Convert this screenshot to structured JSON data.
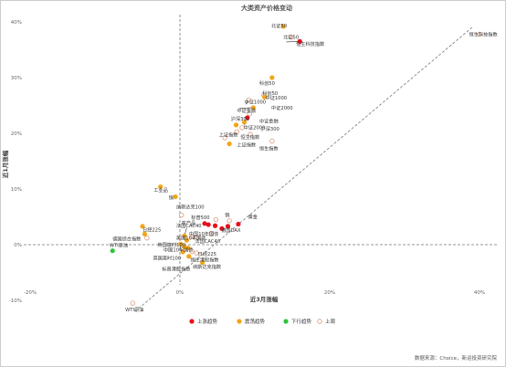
{
  "chart_data": {
    "type": "scatter",
    "title": "大类资产价格变动",
    "xlabel": "近3月涨幅",
    "ylabel": "近1月涨幅",
    "xlim": [
      -20,
      42
    ],
    "ylim": [
      -12,
      42
    ],
    "xticks": [
      -20,
      0,
      20,
      40
    ],
    "xtick_labels": [
      "-20%",
      "0%",
      "20%",
      "40%"
    ],
    "yticks": [
      -10,
      0,
      10,
      20,
      30,
      40
    ],
    "ytick_labels": [
      "-10%",
      "0%",
      "10%",
      "20%",
      "30%",
      "40%"
    ],
    "grid": false,
    "legend_position": "bottom",
    "categories": [
      {
        "key": "up",
        "label": "上涨趋势",
        "color": "#e8111b",
        "hollow": false
      },
      {
        "key": "swing",
        "label": "震荡趋势",
        "color": "#f3a517",
        "hollow": false
      },
      {
        "key": "down",
        "label": "下行趋势",
        "color": "#2ec43a",
        "hollow": false
      },
      {
        "key": "other",
        "label": "上周",
        "color": "#d99a7a",
        "hollow": true
      }
    ],
    "points": [
      {
        "x": 13.8,
        "y": 39.2,
        "cat": "swing",
        "label": "北证50"
      },
      {
        "x": 14.8,
        "y": 37.3,
        "cat": "other",
        "label": "北证50"
      },
      {
        "x": 16.0,
        "y": 36.5,
        "cat": "up",
        "label": "恒生科技指数"
      },
      {
        "x": 40.0,
        "y": 37.8,
        "cat": "other",
        "label": "恒生科技指数"
      },
      {
        "x": 12.3,
        "y": 30.0,
        "cat": "swing",
        "label": "科创50"
      },
      {
        "x": 11.2,
        "y": 26.8,
        "cat": "other",
        "label": "中证1000"
      },
      {
        "x": 11.3,
        "y": 26.5,
        "cat": "swing",
        "label": "中证2000"
      },
      {
        "x": 9.2,
        "y": 26.0,
        "cat": "other",
        "label": "中证1000"
      },
      {
        "x": 9.8,
        "y": 24.6,
        "cat": "swing",
        "label": "中证金融"
      },
      {
        "x": 9.3,
        "y": 23.5,
        "cat": "other",
        "label": "中证2000"
      },
      {
        "x": 9.0,
        "y": 22.8,
        "cat": "up",
        "label": "沪深300"
      },
      {
        "x": 8.6,
        "y": 22.0,
        "cat": "swing",
        "label": "中证金融"
      },
      {
        "x": 8.3,
        "y": 21.0,
        "cat": "other",
        "label": "沪深300"
      },
      {
        "x": 7.5,
        "y": 21.5,
        "cat": "swing",
        "label": "中证2000"
      },
      {
        "x": 7.6,
        "y": 20.3,
        "cat": "other",
        "label": "恒生指数"
      },
      {
        "x": 9.4,
        "y": 19.8,
        "cat": "other",
        "label": "恒生指数"
      },
      {
        "x": 6.6,
        "y": 18.1,
        "cat": "swing",
        "label": "上证指数"
      },
      {
        "x": 6.0,
        "y": 19.2,
        "cat": "other",
        "label": "上证指数"
      },
      {
        "x": 12.3,
        "y": 18.6,
        "cat": "other",
        "label": "恒生指数"
      },
      {
        "x": -2.6,
        "y": 10.4,
        "cat": "swing",
        "label": "工业品"
      },
      {
        "x": -0.6,
        "y": 8.6,
        "cat": "swing",
        "label": "铜"
      },
      {
        "x": -5.0,
        "y": 3.3,
        "cat": "swing",
        "label": "日经225"
      },
      {
        "x": -4.7,
        "y": 1.9,
        "cat": "swing",
        "label": "德国综合指数"
      },
      {
        "x": -4.4,
        "y": 1.2,
        "cat": "other",
        "label": "德国综合指数"
      },
      {
        "x": -9.0,
        "y": -1.1,
        "cat": "down",
        "label": "WTI原油"
      },
      {
        "x": -6.3,
        "y": -10.5,
        "cat": "other",
        "label": "WTI原油"
      },
      {
        "x": 0.2,
        "y": 5.3,
        "cat": "other",
        "label": "纳斯达克100"
      },
      {
        "x": 3.3,
        "y": 3.8,
        "cat": "up",
        "label": "标普500"
      },
      {
        "x": 3.8,
        "y": 3.6,
        "cat": "up",
        "label": "农产品"
      },
      {
        "x": 4.7,
        "y": 3.4,
        "cat": "up",
        "label": "铝"
      },
      {
        "x": 5.6,
        "y": 2.9,
        "cat": "up",
        "label": "德国DAX"
      },
      {
        "x": 6.4,
        "y": 3.3,
        "cat": "up",
        "label": "铝"
      },
      {
        "x": 4.8,
        "y": 4.5,
        "cat": "other",
        "label": "铝"
      },
      {
        "x": 6.6,
        "y": 4.3,
        "cat": "other",
        "label": "德国DAX"
      },
      {
        "x": 4.2,
        "y": 2.0,
        "cat": "other",
        "label": "标普500"
      },
      {
        "x": 7.8,
        "y": 3.7,
        "cat": "up",
        "label": "黄金"
      },
      {
        "x": 0.6,
        "y": 1.6,
        "cat": "swing",
        "label": "法国CAC40"
      },
      {
        "x": 1.6,
        "y": 1.4,
        "cat": "other",
        "label": "美国10年国债"
      },
      {
        "x": 2.3,
        "y": 1.3,
        "cat": "other",
        "label": "法国CAC40"
      },
      {
        "x": 0.9,
        "y": 0.8,
        "cat": "swing",
        "label": "美国10年国债"
      },
      {
        "x": 0.1,
        "y": 0.1,
        "cat": "swing",
        "label": "中国10年国债"
      },
      {
        "x": 0.6,
        "y": -0.4,
        "cat": "swing",
        "label": "英国富时100"
      },
      {
        "x": 1.1,
        "y": -0.6,
        "cat": "swing",
        "label": "恒生指数"
      },
      {
        "x": 0.4,
        "y": -1.3,
        "cat": "swing",
        "label": "美国富时100"
      },
      {
        "x": 1.6,
        "y": -1.2,
        "cat": "other",
        "label": "日经225"
      },
      {
        "x": 2.2,
        "y": -1.5,
        "cat": "other",
        "label": "纳斯达克指数"
      },
      {
        "x": 1.2,
        "y": -2.1,
        "cat": "swing",
        "label": "纳斯达克指数"
      },
      {
        "x": 3.0,
        "y": -3.2,
        "cat": "swing",
        "label": "恒生港股指数"
      }
    ],
    "annotations": [
      {
        "text": "北证50",
        "x": 12.2,
        "y": 39.0
      },
      {
        "text": "北证50",
        "x": 13.8,
        "y": 37.0
      },
      {
        "text": "恒生科技指数",
        "x": 15.5,
        "y": 35.7
      },
      {
        "text": "恒生科技指数",
        "x": 38.6,
        "y": 37.5
      },
      {
        "text": "科创50",
        "x": 10.6,
        "y": 28.7
      },
      {
        "text": "科创50",
        "x": 11.0,
        "y": 26.9
      },
      {
        "text": "中证1000",
        "x": 11.4,
        "y": 26.1
      },
      {
        "text": "中证1000",
        "x": 8.6,
        "y": 25.3
      },
      {
        "text": "中证2000",
        "x": 12.2,
        "y": 24.3
      },
      {
        "text": "中证金融",
        "x": 7.6,
        "y": 23.8
      },
      {
        "text": "沪深300",
        "x": 6.8,
        "y": 22.3
      },
      {
        "text": "中证金融",
        "x": 10.6,
        "y": 21.9
      },
      {
        "text": "中证2000",
        "x": 8.5,
        "y": 20.7
      },
      {
        "text": "沪深300",
        "x": 10.8,
        "y": 20.5
      },
      {
        "text": "恒生指数",
        "x": 8.1,
        "y": 19.0
      },
      {
        "text": "上证指数",
        "x": 5.2,
        "y": 19.4
      },
      {
        "text": "上证指数",
        "x": 7.6,
        "y": 17.6
      },
      {
        "text": "恒生指数",
        "x": 10.6,
        "y": 17.0
      },
      {
        "text": "工业品",
        "x": -3.5,
        "y": 9.5
      },
      {
        "text": "铜",
        "x": -1.5,
        "y": 8.1
      },
      {
        "text": "纳斯达克100",
        "x": -0.5,
        "y": 6.5
      },
      {
        "text": "标普500",
        "x": 1.5,
        "y": 4.6
      },
      {
        "text": "铜",
        "x": 6.0,
        "y": 5.0
      },
      {
        "text": "黄金",
        "x": 9.1,
        "y": 4.7
      },
      {
        "text": "农产品",
        "x": 0.2,
        "y": 3.6
      },
      {
        "text": "法国CAC40",
        "x": -0.5,
        "y": 3.1
      },
      {
        "text": "德国DAX",
        "x": 5.5,
        "y": 2.3
      },
      {
        "text": "日经225",
        "x": -5.0,
        "y": 2.4
      },
      {
        "text": "中国10年国债",
        "x": 1.2,
        "y": 1.6
      },
      {
        "text": "美国10年国债",
        "x": -0.5,
        "y": 0.9
      },
      {
        "text": "德国综合指数",
        "x": -9.0,
        "y": 0.7
      },
      {
        "text": "法国CAC40",
        "x": 2.0,
        "y": 0.3
      },
      {
        "text": "英国富时100",
        "x": -3.0,
        "y": -0.3
      },
      {
        "text": "WTI原油",
        "x": -9.4,
        "y": -0.4
      },
      {
        "text": "中国10年国债",
        "x": -2.2,
        "y": -1.2
      },
      {
        "text": "日经225",
        "x": 2.4,
        "y": -2.0
      },
      {
        "text": "英国富时100",
        "x": -3.6,
        "y": -2.7
      },
      {
        "text": "恒生港股指数",
        "x": 1.4,
        "y": -3.0
      },
      {
        "text": "纳斯达克指数",
        "x": 1.7,
        "y": -4.3
      },
      {
        "text": "标普港股指数",
        "x": -2.4,
        "y": -4.7
      },
      {
        "text": "WTI原油",
        "x": -7.3,
        "y": -12.0
      }
    ],
    "diagonal": {
      "from": [
        -6,
        -12
      ],
      "to": [
        39,
        39
      ]
    },
    "source": "数据来源：Choice，新运投资研究院"
  }
}
